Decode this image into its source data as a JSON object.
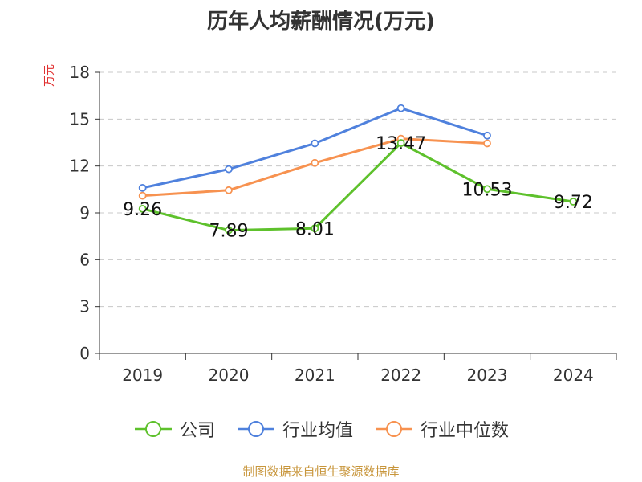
{
  "chart_data": {
    "type": "line",
    "title": "历年人均薪酬情况(万元)",
    "ylabel": "万元",
    "xlabel": "",
    "categories": [
      "2019",
      "2020",
      "2021",
      "2022",
      "2023",
      "2024"
    ],
    "ylim": [
      0,
      18
    ],
    "yticks": [
      0,
      3,
      6,
      9,
      12,
      15,
      18
    ],
    "grid": true,
    "legend_position": "bottom",
    "series": [
      {
        "name": "公司",
        "color": "#5ec12c",
        "values": [
          9.26,
          7.89,
          8.01,
          13.47,
          10.53,
          9.72
        ],
        "labels": [
          "9.26",
          "7.89",
          "8.01",
          "13.47",
          "10.53",
          "9.72"
        ]
      },
      {
        "name": "行业均值",
        "color": "#4f81dd",
        "values": [
          10.6,
          11.8,
          13.45,
          15.7,
          13.95,
          null
        ]
      },
      {
        "name": "行业中位数",
        "color": "#f79250",
        "values": [
          10.1,
          10.45,
          12.2,
          13.75,
          13.45,
          null
        ]
      }
    ]
  },
  "source": "制图数据来自恒生聚源数据库"
}
